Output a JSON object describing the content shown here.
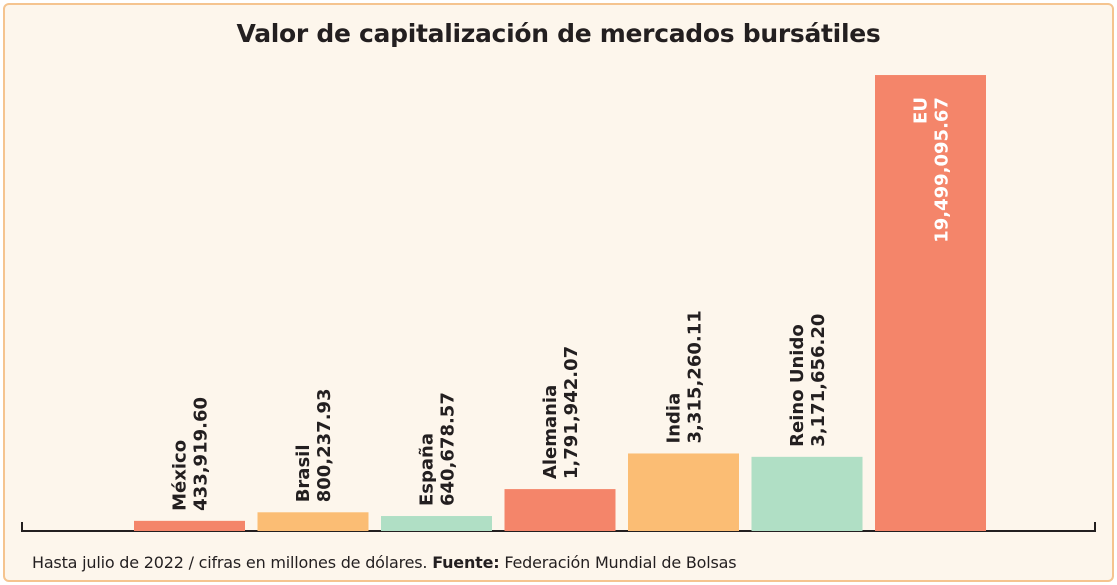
{
  "chart_data": {
    "type": "bar",
    "title": "Valor de capitalización de mercados bursátiles",
    "categories": [
      "México",
      "Brasil",
      "España",
      "Alemania",
      "India",
      "Reino Unido",
      "EU"
    ],
    "values": [
      433919.6,
      800237.93,
      640678.57,
      1791942.07,
      3315260.11,
      3171656.2,
      19499095.67
    ],
    "value_labels": [
      "433,919.60",
      "800,237.93",
      "640,678.57",
      "1,791,942.07",
      "3,315,260.11",
      "3,171,656.20",
      "19,499,095.67"
    ],
    "colors": [
      "#f4856a",
      "#fbbd74",
      "#b0dfc5",
      "#f4856a",
      "#fbbd74",
      "#b0dfc5",
      "#f4856a"
    ],
    "ylim": [
      0,
      19800000
    ],
    "grid": false,
    "xlabel": "",
    "ylabel": ""
  },
  "footnote": {
    "prefix": "Hasta julio de 2022 / cifras en millones de dólares.",
    "source_label": "Fuente:",
    "source": "Federación Mundial de Bolsas"
  },
  "colors": {
    "background": "#fdf6ec",
    "border": "#f5c48f",
    "text": "#231f20",
    "label_inside": "#ffffff"
  }
}
